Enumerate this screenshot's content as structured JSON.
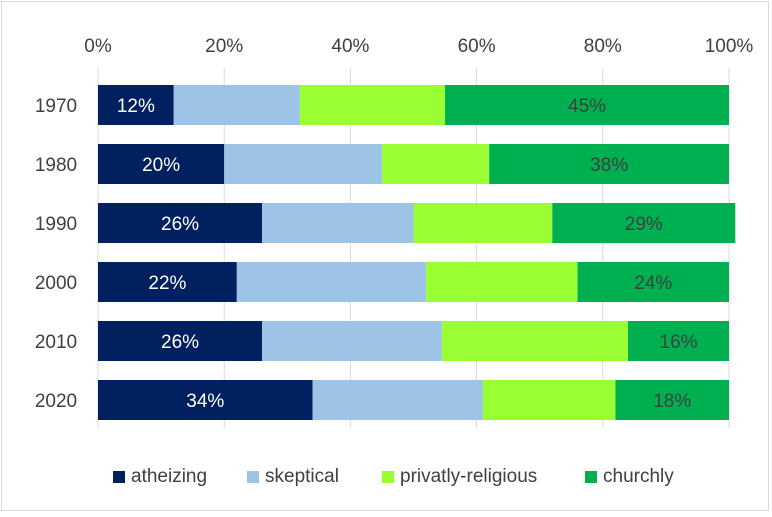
{
  "chart_data": {
    "type": "bar",
    "orientation": "horizontal",
    "stacked": "percent",
    "categories": [
      "1970",
      "1980",
      "1990",
      "2000",
      "2010",
      "2020"
    ],
    "series": [
      {
        "name": "atheizing",
        "color": "#002060",
        "values": [
          12,
          20,
          26,
          22,
          26,
          34
        ],
        "labels": [
          "12%",
          "20%",
          "26%",
          "22%",
          "26%",
          "34%"
        ],
        "label_color": "#ffffff"
      },
      {
        "name": "skeptical",
        "color": "#9dc3e6",
        "values": [
          20,
          25,
          24,
          30,
          28.5,
          27
        ],
        "labels": null
      },
      {
        "name": "privatly-religious",
        "color": "#99ff33",
        "values": [
          23,
          17,
          22,
          24,
          29.5,
          21
        ],
        "labels": null
      },
      {
        "name": "churchly",
        "color": "#00b050",
        "values": [
          45,
          38,
          29,
          24,
          16,
          18
        ],
        "labels": [
          "45%",
          "38%",
          "29%",
          "24%",
          "16%",
          "18%"
        ],
        "label_color": "#404040"
      }
    ],
    "x_ticks": [
      "0%",
      "20%",
      "40%",
      "60%",
      "80%",
      "100%"
    ],
    "xlim": [
      0,
      100
    ],
    "grid": true,
    "legend_position": "bottom",
    "title": "",
    "xlabel": "",
    "ylabel": ""
  }
}
